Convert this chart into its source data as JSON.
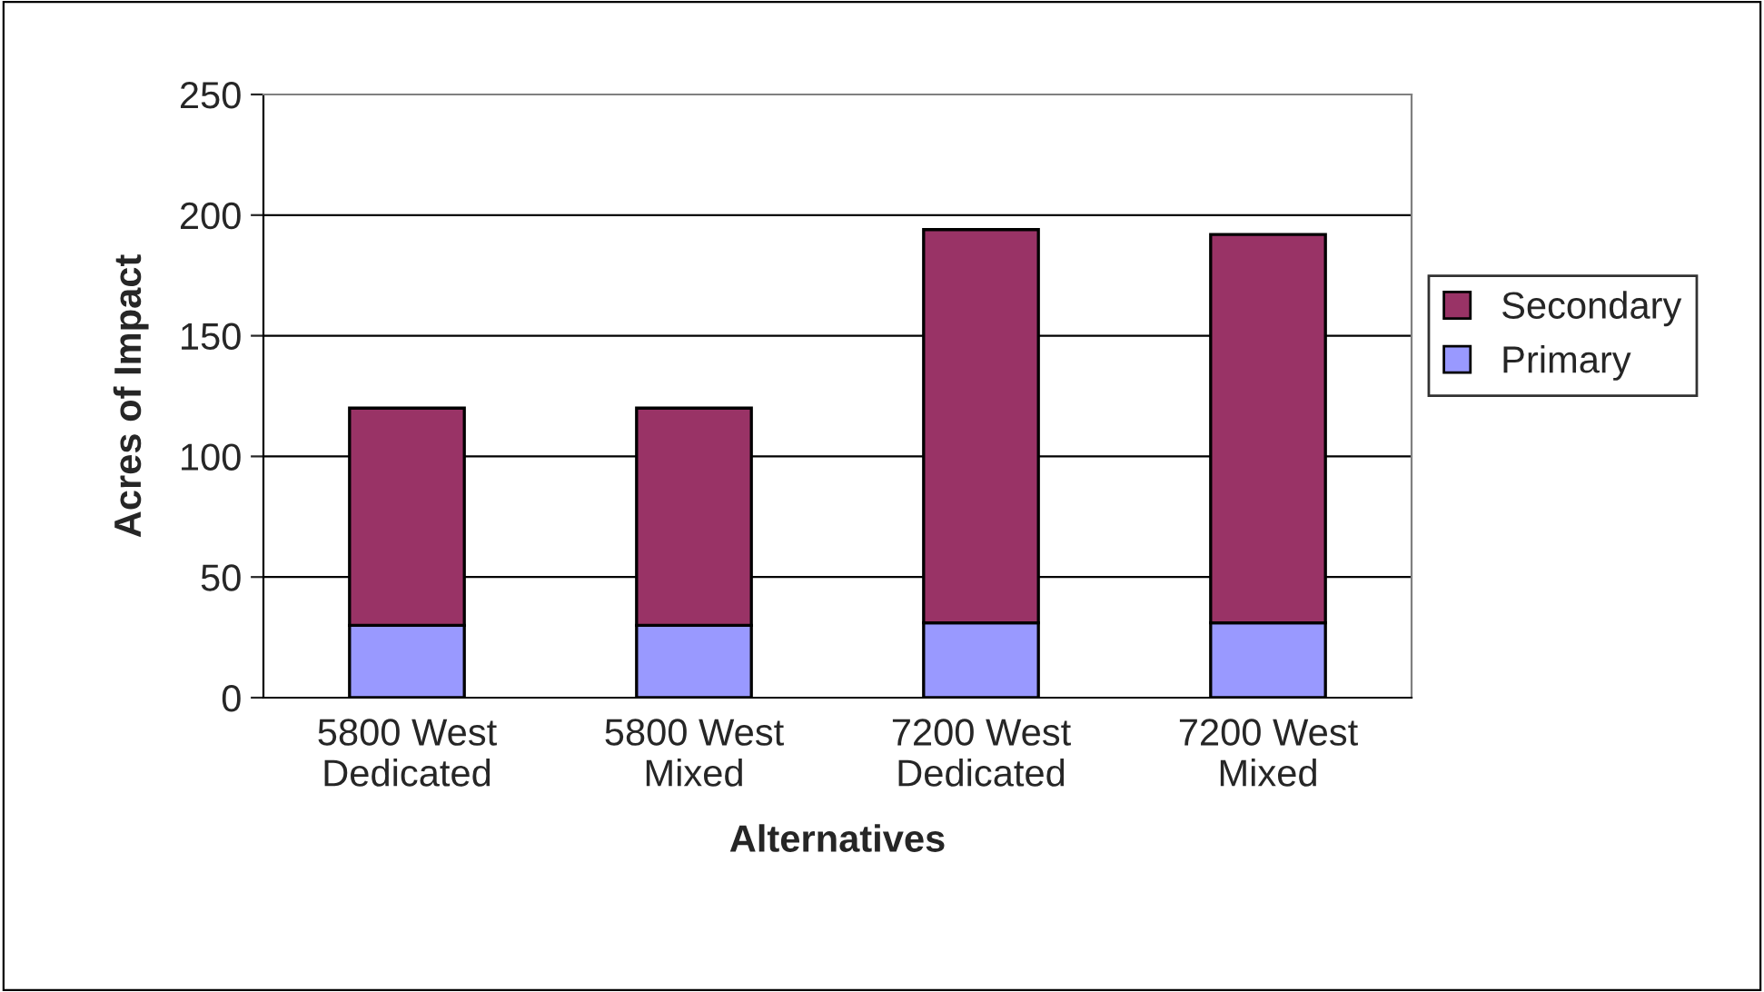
{
  "chart_data": {
    "type": "bar",
    "stacked": true,
    "xlabel": "Alternatives",
    "ylabel": "Acres of Impact",
    "categories": [
      "5800 West\nDedicated",
      "5800 West\nMixed",
      "7200 West\nDedicated",
      "7200 West\nMixed"
    ],
    "series": [
      {
        "name": "Primary",
        "color": "#9999ff",
        "values": [
          30,
          30,
          31,
          31
        ]
      },
      {
        "name": "Secondary",
        "color": "#993366",
        "values": [
          90,
          90,
          163,
          161
        ]
      }
    ],
    "ylim": [
      0,
      250
    ],
    "yticks": [
      0,
      50,
      100,
      150,
      200,
      250
    ],
    "grid": "y",
    "legend": "right"
  }
}
